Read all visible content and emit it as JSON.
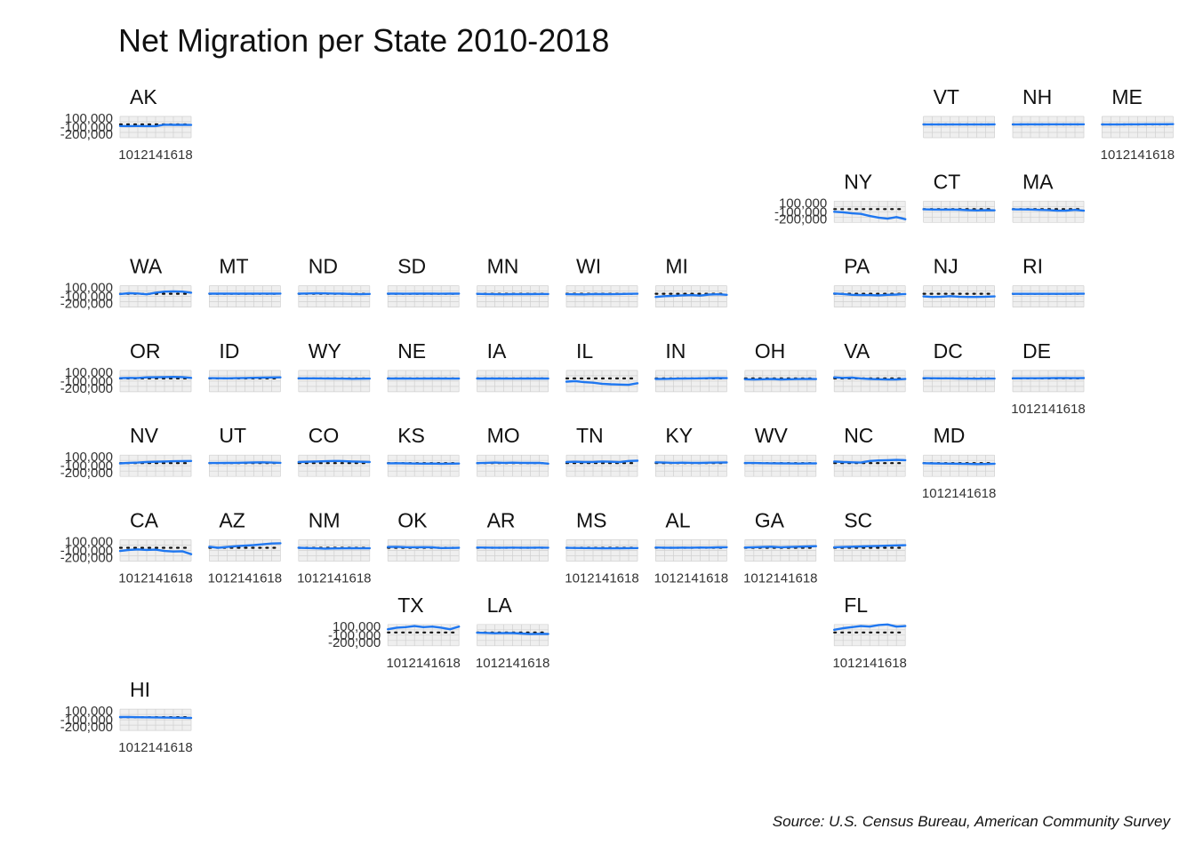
{
  "chart_data": {
    "type": "line",
    "title": "Net Migration per State 2010-2018",
    "caption": "Source: U.S. Census Bureau, American Community Survey",
    "x": [
      2010,
      2011,
      2012,
      2013,
      2014,
      2015,
      2016,
      2017,
      2018
    ],
    "x_tick_labels": [
      "10",
      "12",
      "14",
      "16",
      "18"
    ],
    "y_tick_labels": [
      "100,000",
      "-100,000",
      "-200,000"
    ],
    "ylim": [
      -250000,
      150000
    ],
    "reference_line": 0,
    "line_color": "#1f77f0",
    "states": [
      {
        "code": "AK",
        "row": 0,
        "col": 0,
        "values": [
          -30000,
          -32000,
          -30000,
          -32000,
          -31000,
          -5000,
          -8000,
          -7000,
          -10000
        ]
      },
      {
        "code": "VT",
        "row": 0,
        "col": 9,
        "values": [
          -1000,
          -1500,
          -1000,
          -1200,
          -1500,
          -1000,
          -1500,
          -1000,
          -500
        ]
      },
      {
        "code": "NH",
        "row": 0,
        "col": 10,
        "values": [
          -1000,
          -500,
          1000,
          -500,
          1000,
          1500,
          2000,
          1000,
          2000
        ]
      },
      {
        "code": "ME",
        "row": 0,
        "col": 11,
        "values": [
          -1000,
          -2000,
          -2000,
          1000,
          2000,
          3000,
          4000,
          3000,
          5000
        ]
      },
      {
        "code": "NY",
        "row": 1,
        "col": 8,
        "values": [
          -50000,
          -60000,
          -80000,
          -90000,
          -130000,
          -160000,
          -180000,
          -150000,
          -190000
        ]
      },
      {
        "code": "CT",
        "row": 1,
        "col": 9,
        "values": [
          -5000,
          -8000,
          -10000,
          -8000,
          -12000,
          -20000,
          -25000,
          -20000,
          -24000
        ]
      },
      {
        "code": "MA",
        "row": 1,
        "col": 10,
        "values": [
          -5000,
          -6000,
          -8000,
          -15000,
          -18000,
          -30000,
          -28000,
          -15000,
          -30000
        ]
      },
      {
        "code": "WA",
        "row": 2,
        "col": 0,
        "values": [
          -5000,
          10000,
          5000,
          -10000,
          20000,
          40000,
          45000,
          40000,
          20000
        ]
      },
      {
        "code": "MT",
        "row": 2,
        "col": 1,
        "values": [
          1000,
          2000,
          1000,
          2000,
          1000,
          2000,
          3000,
          2000,
          3000
        ]
      },
      {
        "code": "ND",
        "row": 2,
        "col": 2,
        "values": [
          2000,
          5000,
          8000,
          6000,
          3000,
          1000,
          -5000,
          -8000,
          -3000
        ]
      },
      {
        "code": "SD",
        "row": 2,
        "col": 3,
        "values": [
          1000,
          1000,
          500,
          1000,
          2000,
          1000,
          500,
          1000,
          1000
        ]
      },
      {
        "code": "MN",
        "row": 2,
        "col": 4,
        "values": [
          -2000,
          -5000,
          -8000,
          -10000,
          -6000,
          -9000,
          -7000,
          -5000,
          -5000
        ]
      },
      {
        "code": "WI",
        "row": 2,
        "col": 5,
        "values": [
          -8000,
          -10000,
          -12000,
          -5000,
          -6000,
          -8000,
          -5000,
          -2000,
          0
        ]
      },
      {
        "code": "MI",
        "row": 2,
        "col": 6,
        "values": [
          -60000,
          -45000,
          -40000,
          -30000,
          -25000,
          -35000,
          -15000,
          -10000,
          -20000
        ]
      },
      {
        "code": "PA",
        "row": 2,
        "col": 8,
        "values": [
          5000,
          -5000,
          -20000,
          -25000,
          -25000,
          -30000,
          -20000,
          -15000,
          -5000
        ]
      },
      {
        "code": "NJ",
        "row": 2,
        "col": 9,
        "values": [
          -50000,
          -60000,
          -55000,
          -45000,
          -55000,
          -60000,
          -60000,
          -55000,
          -50000
        ]
      },
      {
        "code": "RI",
        "row": 2,
        "col": 10,
        "values": [
          -1000,
          -2000,
          -2000,
          -1500,
          -1000,
          -2000,
          -1000,
          -500,
          0
        ]
      },
      {
        "code": "OR",
        "row": 3,
        "col": 0,
        "values": [
          5000,
          10000,
          8000,
          20000,
          22000,
          25000,
          28000,
          25000,
          10000
        ]
      },
      {
        "code": "ID",
        "row": 3,
        "col": 1,
        "values": [
          5000,
          3000,
          2000,
          5000,
          8000,
          12000,
          15000,
          18000,
          20000
        ]
      },
      {
        "code": "WY",
        "row": 3,
        "col": 2,
        "values": [
          2000,
          1000,
          2000,
          0,
          -2000,
          -3000,
          -6000,
          -5000,
          -4000
        ]
      },
      {
        "code": "NE",
        "row": 3,
        "col": 3,
        "values": [
          -2000,
          -1000,
          -2000,
          -3000,
          -2000,
          -1000,
          -2000,
          -3000,
          -2000
        ]
      },
      {
        "code": "IA",
        "row": 3,
        "col": 4,
        "values": [
          -1000,
          -2000,
          -1000,
          -2000,
          -3000,
          -2000,
          -1000,
          -2000,
          -1000
        ]
      },
      {
        "code": "IL",
        "row": 3,
        "col": 5,
        "values": [
          -60000,
          -50000,
          -70000,
          -80000,
          -100000,
          -110000,
          -115000,
          -120000,
          -90000
        ]
      },
      {
        "code": "IN",
        "row": 3,
        "col": 6,
        "values": [
          -10000,
          -8000,
          -5000,
          -2000,
          0,
          2000,
          5000,
          8000,
          5000
        ]
      },
      {
        "code": "OH",
        "row": 3,
        "col": 7,
        "values": [
          -15000,
          -20000,
          -15000,
          -10000,
          -18000,
          -15000,
          -12000,
          -10000,
          -12000
        ]
      },
      {
        "code": "VA",
        "row": 3,
        "col": 8,
        "values": [
          20000,
          10000,
          15000,
          0,
          -10000,
          -15000,
          -20000,
          -18000,
          -10000
        ]
      },
      {
        "code": "DC",
        "row": 3,
        "col": 9,
        "values": [
          5000,
          3000,
          2000,
          1000,
          -2000,
          -3000,
          -5000,
          -4000,
          -3000
        ]
      },
      {
        "code": "DE",
        "row": 3,
        "col": 10,
        "values": [
          2000,
          3000,
          3000,
          4000,
          5000,
          6000,
          6000,
          5000,
          6000
        ]
      },
      {
        "code": "NV",
        "row": 4,
        "col": 0,
        "values": [
          -5000,
          5000,
          10000,
          20000,
          25000,
          30000,
          35000,
          38000,
          40000
        ]
      },
      {
        "code": "UT",
        "row": 4,
        "col": 1,
        "values": [
          2000,
          1000,
          3000,
          5000,
          8000,
          12000,
          15000,
          10000,
          5000
        ]
      },
      {
        "code": "CO",
        "row": 4,
        "col": 2,
        "values": [
          20000,
          25000,
          30000,
          35000,
          40000,
          38000,
          30000,
          25000,
          20000
        ]
      },
      {
        "code": "KS",
        "row": 4,
        "col": 3,
        "values": [
          -3000,
          -2000,
          -5000,
          -8000,
          -10000,
          -8000,
          -12000,
          -10000,
          -8000
        ]
      },
      {
        "code": "MO",
        "row": 4,
        "col": 4,
        "values": [
          0,
          5000,
          10000,
          5000,
          8000,
          5000,
          3000,
          5000,
          -10000
        ]
      },
      {
        "code": "TN",
        "row": 4,
        "col": 5,
        "values": [
          20000,
          25000,
          20000,
          22000,
          30000,
          25000,
          18000,
          40000,
          45000
        ]
      },
      {
        "code": "KY",
        "row": 4,
        "col": 6,
        "values": [
          15000,
          10000,
          5000,
          8000,
          5000,
          3000,
          8000,
          10000,
          12000
        ]
      },
      {
        "code": "WV",
        "row": 4,
        "col": 7,
        "values": [
          2000,
          1000,
          -2000,
          -3000,
          -5000,
          -6000,
          -8000,
          -7000,
          -5000
        ]
      },
      {
        "code": "NC",
        "row": 4,
        "col": 8,
        "values": [
          30000,
          20000,
          15000,
          10000,
          40000,
          50000,
          55000,
          60000,
          55000
        ]
      },
      {
        "code": "MD",
        "row": 4,
        "col": 9,
        "values": [
          -2000,
          -5000,
          -8000,
          -10000,
          -12000,
          -15000,
          -18000,
          -16000,
          -12000
        ]
      },
      {
        "code": "CA",
        "row": 5,
        "col": 0,
        "values": [
          -60000,
          -40000,
          -30000,
          -40000,
          -35000,
          -60000,
          -70000,
          -65000,
          -120000
        ]
      },
      {
        "code": "AZ",
        "row": 5,
        "col": 1,
        "values": [
          20000,
          0,
          15000,
          30000,
          40000,
          50000,
          65000,
          80000,
          85000
        ]
      },
      {
        "code": "NM",
        "row": 5,
        "col": 2,
        "values": [
          0,
          -5000,
          -10000,
          -15000,
          -12000,
          -10000,
          -8000,
          -10000,
          -8000
        ]
      },
      {
        "code": "OK",
        "row": 5,
        "col": 3,
        "values": [
          15000,
          18000,
          12000,
          10000,
          12000,
          8000,
          -5000,
          -3000,
          0
        ]
      },
      {
        "code": "AR",
        "row": 5,
        "col": 4,
        "values": [
          5000,
          3000,
          1000,
          2000,
          3000,
          1000,
          2000,
          3000,
          2000
        ]
      },
      {
        "code": "MS",
        "row": 5,
        "col": 5,
        "values": [
          -2000,
          -3000,
          -5000,
          -6000,
          -8000,
          -10000,
          -8000,
          -6000,
          -5000
        ]
      },
      {
        "code": "AL",
        "row": 5,
        "col": 6,
        "values": [
          5000,
          2000,
          0,
          3000,
          1000,
          5000,
          3000,
          8000,
          10000
        ]
      },
      {
        "code": "GA",
        "row": 5,
        "col": 7,
        "values": [
          5000,
          10000,
          15000,
          20000,
          10000,
          15000,
          20000,
          25000,
          30000
        ]
      },
      {
        "code": "SC",
        "row": 5,
        "col": 8,
        "values": [
          10000,
          15000,
          20000,
          25000,
          30000,
          35000,
          40000,
          45000,
          48000
        ]
      },
      {
        "code": "TX",
        "row": 6,
        "col": 3,
        "values": [
          60000,
          90000,
          100000,
          120000,
          100000,
          110000,
          90000,
          60000,
          110000
        ]
      },
      {
        "code": "LA",
        "row": 6,
        "col": 4,
        "values": [
          -5000,
          -8000,
          -15000,
          -10000,
          -12000,
          -20000,
          -30000,
          -25000,
          -28000
        ]
      },
      {
        "code": "FL",
        "row": 6,
        "col": 8,
        "values": [
          50000,
          80000,
          100000,
          120000,
          110000,
          140000,
          150000,
          110000,
          120000
        ]
      },
      {
        "code": "HI",
        "row": 7,
        "col": 0,
        "values": [
          2000,
          1000,
          -1000,
          -3000,
          -5000,
          -8000,
          -10000,
          -12000,
          -15000
        ]
      }
    ]
  }
}
